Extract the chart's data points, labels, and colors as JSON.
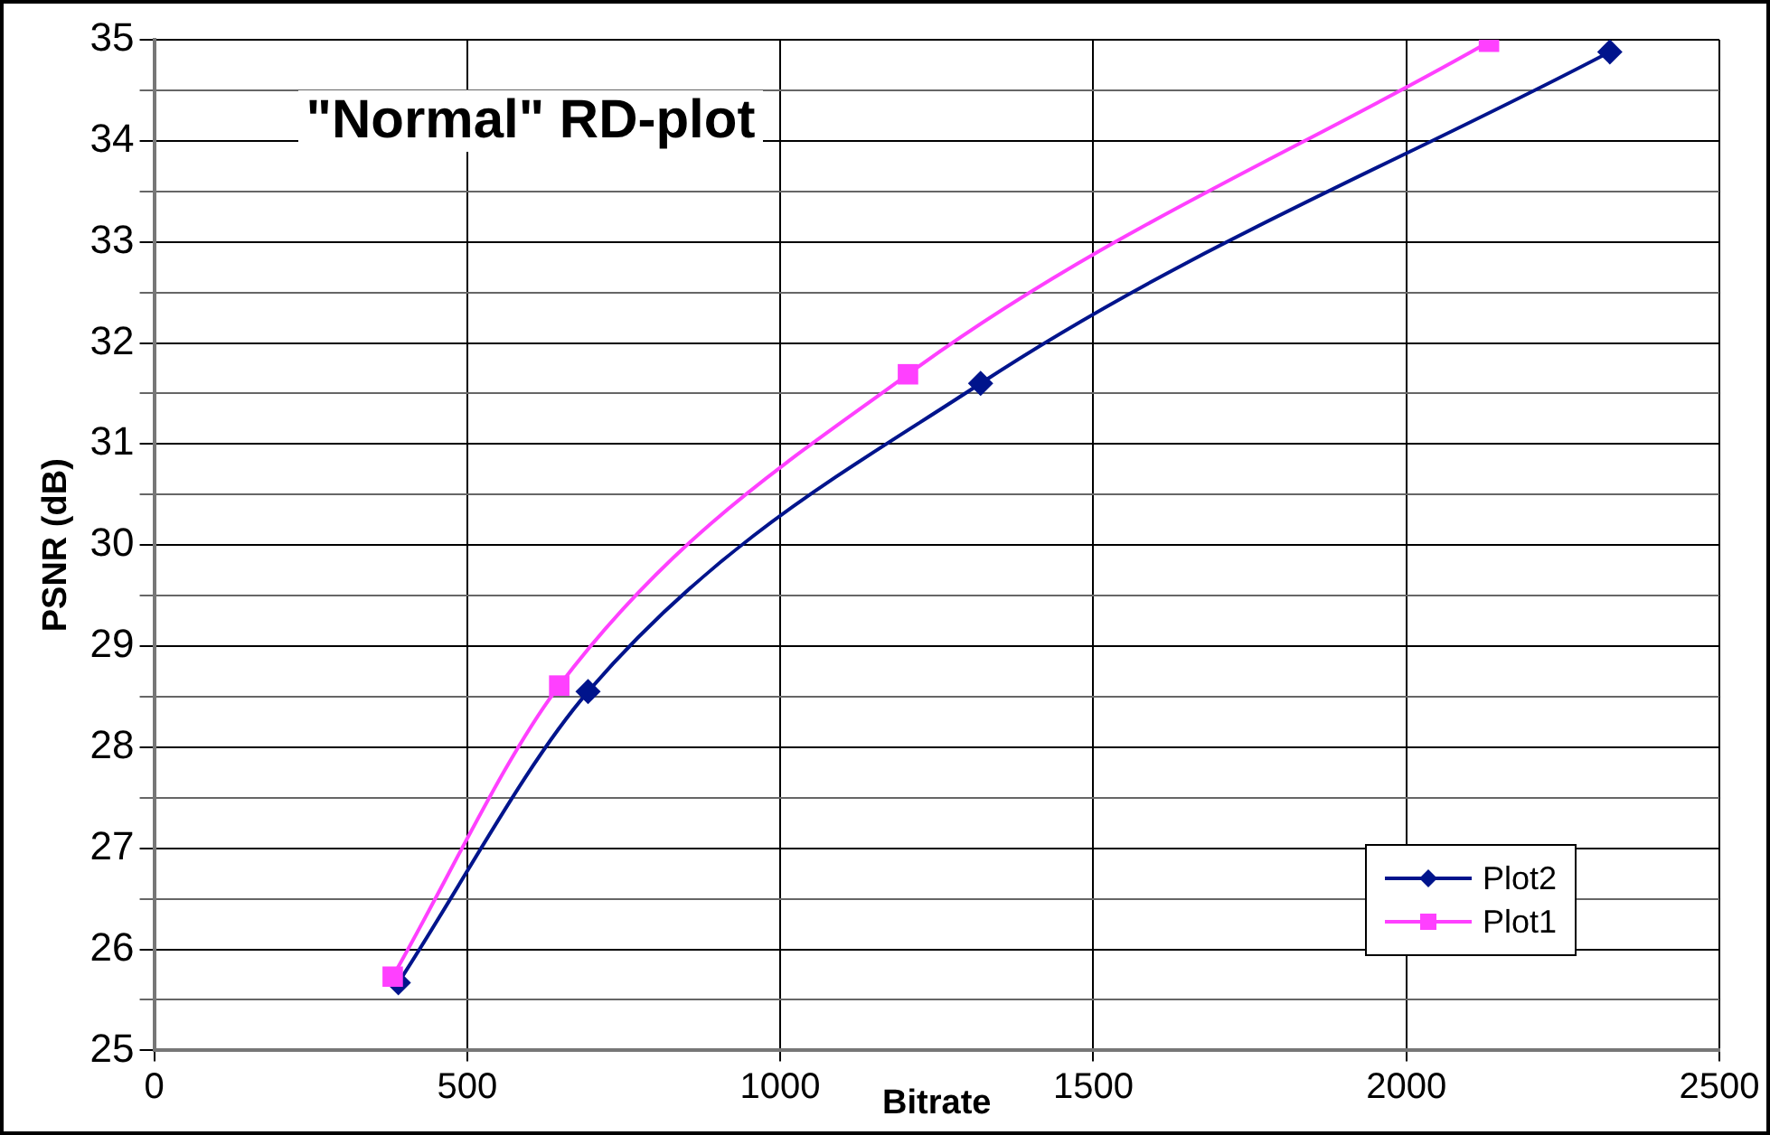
{
  "chart_data": {
    "type": "line",
    "title": "\"Normal\" RD-plot",
    "xlabel": "Bitrate",
    "ylabel": "PSNR (dB)",
    "xlim": [
      0,
      2500
    ],
    "xticks": [
      0,
      500,
      1000,
      1500,
      2000,
      2500
    ],
    "ylim": [
      25,
      35
    ],
    "yticks": [
      25,
      {
        "value": 25.5,
        "label": null
      },
      26,
      {
        "value": 26.5,
        "label": null
      },
      27,
      {
        "value": 27.5,
        "label": null
      },
      28,
      {
        "value": 28.5,
        "label": null
      },
      29,
      {
        "value": 29.5,
        "label": null
      },
      30,
      {
        "value": 30.5,
        "label": null
      },
      31,
      {
        "value": 31.5,
        "label": null
      },
      32,
      {
        "value": 32.5,
        "label": null
      },
      33,
      {
        "value": 33.5,
        "label": null
      },
      34,
      {
        "value": 34.5,
        "label": null
      },
      35
    ],
    "grid": true,
    "legend": "bottom right",
    "line_style": "solid",
    "series": [
      {
        "name": "Plot2",
        "color": "#00148c",
        "marker": "diamond",
        "x": [
          390,
          693,
          1320,
          2325
        ],
        "values": [
          25.67,
          28.55,
          31.6,
          34.88
        ]
      },
      {
        "name": "Plot1",
        "color": "#ff40ff",
        "marker": "square",
        "x": [
          381,
          647,
          1204,
          2132
        ],
        "values": [
          25.73,
          28.61,
          31.69,
          34.98
        ]
      }
    ]
  }
}
